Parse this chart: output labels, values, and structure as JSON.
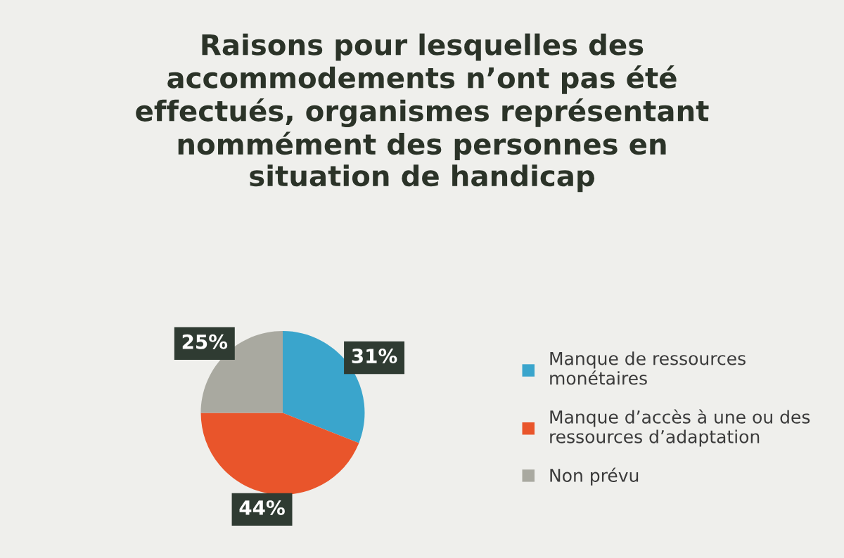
{
  "chart_data": {
    "type": "pie",
    "title": "Raisons pour lesquelles des\naccommodements n’ont pas été\neffectués, organismes représentant\nnommément des personnes en\nsituation de handicap",
    "categories": [
      "Manque de ressources\nmonétaires",
      "Manque d’accès à une ou des\nressources d’adaptation",
      "Non prévu"
    ],
    "values": [
      31,
      44,
      25
    ],
    "colors": [
      "#3aa5cc",
      "#e9552b",
      "#a9a9a0"
    ],
    "value_labels": [
      "31%",
      "44%",
      "25%"
    ],
    "legend": "right"
  }
}
